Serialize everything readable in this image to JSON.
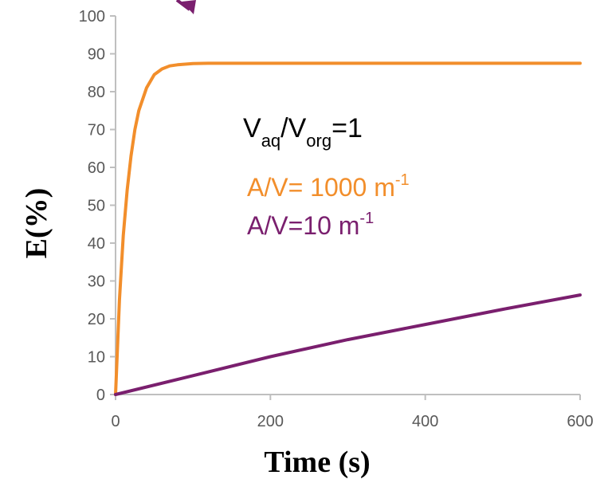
{
  "chart_data": {
    "type": "line",
    "title": "",
    "xlabel": "Time (s)",
    "ylabel": "E(%)",
    "xlim": [
      0,
      600
    ],
    "ylim": [
      0,
      100
    ],
    "xticks": [
      "0",
      "200",
      "400",
      "600"
    ],
    "yticks": [
      "0",
      "10",
      "20",
      "30",
      "40",
      "50",
      "60",
      "70",
      "80",
      "90",
      "100"
    ],
    "grid": false,
    "colors": {
      "orange": "#f28e2b",
      "purple": "#7a1f6e",
      "axis": "#bfbfbf"
    },
    "annotation": {
      "ratio": {
        "V": "V",
        "aq": "aq",
        "slash": "/V",
        "org": "org",
        "eq": "=1"
      },
      "orange_label": {
        "text": "A/V= 1000 m",
        "sup": "-1"
      },
      "purple_label": {
        "text": "A/V=10 m",
        "sup": "-1"
      }
    },
    "series": [
      {
        "color": "#f28e2b",
        "x": [
          0,
          5,
          10,
          15,
          20,
          25,
          30,
          40,
          50,
          60,
          70,
          80,
          100,
          120,
          150,
          200,
          300,
          400,
          500,
          600
        ],
        "y": [
          0,
          25,
          42,
          54,
          63,
          70,
          75,
          81,
          84.5,
          86,
          86.8,
          87.1,
          87.4,
          87.5,
          87.5,
          87.5,
          87.5,
          87.5,
          87.5,
          87.5
        ]
      },
      {
        "color": "#7a1f6e",
        "x": [
          0,
          100,
          200,
          300,
          400,
          500,
          600
        ],
        "y": [
          0,
          5,
          10,
          14.5,
          18.5,
          22.5,
          26.3
        ]
      }
    ]
  }
}
